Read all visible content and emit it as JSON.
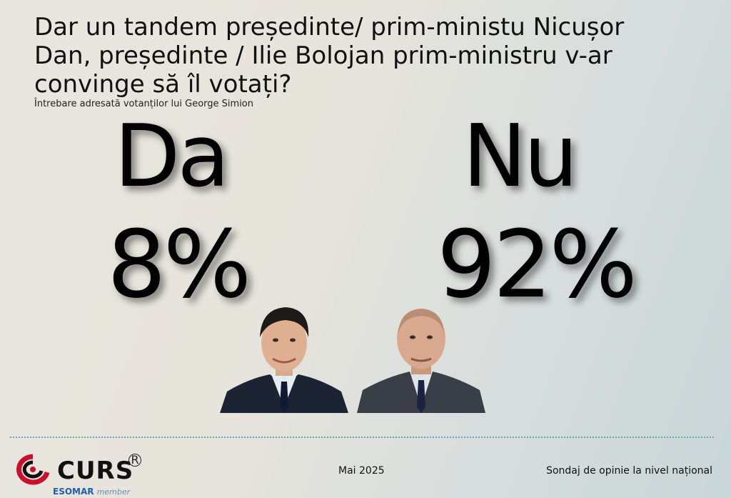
{
  "header": {
    "question": "Dar un tandem președinte/ prim-ministu  Nicușor Dan, președinte / Ilie Bolojan prim-ministru v-ar convinge  să îl votați?",
    "subtitle": "Întrebare adresată votanților lui George Simion"
  },
  "results": [
    {
      "answer": "Da",
      "percent": "8%"
    },
    {
      "answer": "Nu",
      "percent": "92%"
    }
  ],
  "footer": {
    "logo_text": "CURS",
    "logo_reg": "R",
    "esomar": "ESOMAR",
    "esomar_member": "member",
    "date": "Mai 2025",
    "survey_type": "Sondaj de opinie la nivel național"
  },
  "colors": {
    "divider": "#6aa3ad",
    "logo_red": "#c8102e",
    "esomar_blue": "#1e5fa8"
  }
}
